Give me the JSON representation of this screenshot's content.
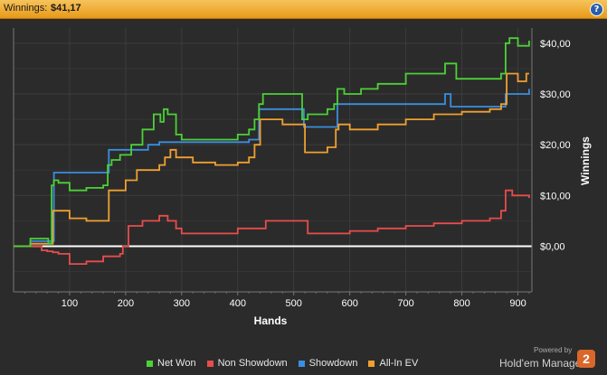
{
  "header": {
    "label": "Winnings:",
    "value": "$41,17",
    "help_label": "?"
  },
  "brand": {
    "powered_by": "Powered by",
    "name": "Hold'em Manager",
    "logo_text": "2"
  },
  "chart_data": {
    "type": "line",
    "title": "",
    "xlabel": "Hands",
    "ylabel": "Winnings",
    "xlim": [
      0,
      925
    ],
    "ylim": [
      -9,
      43
    ],
    "x_ticks": [
      100,
      200,
      300,
      400,
      500,
      600,
      700,
      800,
      900
    ],
    "y_ticks": [
      {
        "value": 0,
        "label": "$0,00"
      },
      {
        "value": 10,
        "label": "$10,00"
      },
      {
        "value": 20,
        "label": "$20,00"
      },
      {
        "value": 30,
        "label": "$30,00"
      },
      {
        "value": 40,
        "label": "$40,00"
      }
    ],
    "grid": true,
    "legend_position": "bottom",
    "series": [
      {
        "name": "Net Won",
        "color": "#4cd137",
        "x": [
          0,
          30,
          55,
          62,
          68,
          72,
          80,
          100,
          130,
          160,
          168,
          175,
          190,
          210,
          230,
          250,
          262,
          268,
          275,
          290,
          300,
          320,
          360,
          400,
          420,
          430,
          438,
          445,
          480,
          510,
          515,
          525,
          560,
          572,
          578,
          590,
          620,
          650,
          700,
          760,
          770,
          790,
          830,
          870,
          878,
          885,
          900,
          920
        ],
        "y": [
          0,
          1.5,
          1.5,
          0.5,
          12,
          13,
          12.5,
          11,
          11.5,
          12,
          16,
          17,
          18,
          20,
          23,
          26,
          24.5,
          27,
          26,
          22,
          21,
          21,
          21,
          22,
          23,
          25,
          28,
          30,
          30,
          30,
          25,
          26,
          27,
          28,
          31,
          30,
          31,
          32,
          34,
          34,
          36,
          33,
          33,
          34,
          40,
          41,
          39.5,
          40.5
        ]
      },
      {
        "name": "Non Showdown",
        "color": "#e84c4c",
        "x": [
          0,
          30,
          50,
          60,
          70,
          80,
          100,
          130,
          160,
          190,
          195,
          205,
          230,
          260,
          275,
          290,
          300,
          350,
          400,
          450,
          500,
          525,
          560,
          600,
          650,
          700,
          750,
          800,
          850,
          870,
          878,
          890,
          910,
          920
        ],
        "y": [
          0,
          0,
          -0.8,
          -1,
          -1.2,
          -1.5,
          -3.5,
          -3,
          -2,
          -1.5,
          0,
          4,
          5,
          6,
          5,
          3.5,
          2.5,
          2.5,
          3.5,
          5,
          5,
          2.5,
          2.5,
          3,
          3.5,
          4,
          4.5,
          5,
          5.5,
          7,
          11,
          10,
          10,
          9.5
        ]
      },
      {
        "name": "Showdown",
        "color": "#3a8ee0",
        "x": [
          0,
          30,
          60,
          72,
          78,
          165,
          170,
          200,
          230,
          240,
          260,
          280,
          300,
          380,
          420,
          438,
          450,
          510,
          518,
          570,
          578,
          620,
          700,
          765,
          770,
          780,
          800,
          870,
          878,
          890,
          915,
          920
        ],
        "y": [
          0,
          1,
          1,
          14.5,
          14.5,
          14.5,
          19,
          19,
          19,
          20,
          20.5,
          20.5,
          20.5,
          20.5,
          21,
          27,
          27,
          27,
          23.5,
          23.5,
          28,
          28,
          28,
          28,
          30,
          27.5,
          27.5,
          27.5,
          30,
          30,
          30,
          31
        ]
      },
      {
        "name": "All-In EV",
        "color": "#f0a030",
        "x": [
          0,
          30,
          60,
          70,
          80,
          100,
          130,
          165,
          170,
          200,
          220,
          260,
          270,
          280,
          290,
          320,
          360,
          400,
          420,
          430,
          440,
          450,
          480,
          510,
          520,
          560,
          575,
          580,
          600,
          650,
          700,
          750,
          800,
          850,
          870,
          880,
          900,
          915,
          920
        ],
        "y": [
          0,
          0.5,
          0.5,
          7,
          7,
          5.5,
          5,
          5,
          11,
          13,
          15,
          16,
          17.5,
          19,
          17.5,
          16.5,
          16,
          16.5,
          17.5,
          20,
          25,
          25,
          24,
          24,
          18.5,
          19.5,
          23,
          24,
          23,
          24,
          25,
          26,
          26.5,
          27,
          28,
          34,
          32.5,
          34,
          34
        ]
      }
    ]
  }
}
